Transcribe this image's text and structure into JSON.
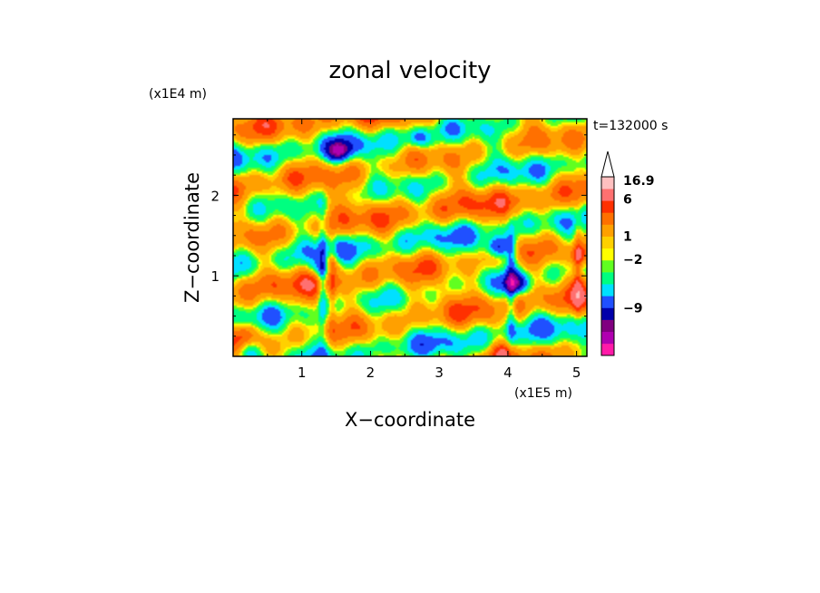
{
  "chart_data": {
    "type": "heatmap",
    "title": "zonal velocity",
    "xlabel": "X−coordinate",
    "ylabel": "Z−coordinate",
    "x_unit": "(x1E5 m)",
    "y_unit": "(x1E4 m)",
    "time_label": "t=132000 s",
    "xlim": [
      0,
      5.15
    ],
    "ylim": [
      0,
      2.95
    ],
    "x_ticks": [
      "1",
      "2",
      "3",
      "4",
      "5"
    ],
    "y_ticks": [
      "1",
      "2"
    ],
    "colorbar": {
      "labels": [
        "16.9",
        "6",
        "1",
        "−2",
        "−9"
      ],
      "colors": [
        "#ff1aa8",
        "#b000b0",
        "#800080",
        "#0000aa",
        "#2050ff",
        "#00e0ff",
        "#00ff80",
        "#60ff20",
        "#ffff00",
        "#ffd000",
        "#ffa000",
        "#ff7000",
        "#ff3000",
        "#ff7070",
        "#ffc0c0"
      ]
    },
    "features": [
      {
        "type": "min",
        "x": 1.55,
        "z": 2.55,
        "v": -9
      },
      {
        "type": "min",
        "x": 2.7,
        "z": 2.7,
        "v": -5
      },
      {
        "type": "min",
        "x": 3.85,
        "z": 1.35,
        "v": -8
      },
      {
        "type": "min",
        "x": 4.1,
        "z": 0.9,
        "v": -9
      },
      {
        "type": "min",
        "x": 1.3,
        "z": 1.1,
        "v": -7
      },
      {
        "type": "min",
        "x": 0.2,
        "z": 0.05,
        "v": -6
      },
      {
        "type": "max",
        "x": 1.4,
        "z": 1.15,
        "v": 6
      },
      {
        "type": "max",
        "x": 5.05,
        "z": 1.25,
        "v": 6
      },
      {
        "type": "max",
        "x": 0.2,
        "z": 0.3,
        "v": 4
      },
      {
        "type": "max",
        "x": 3.9,
        "z": 0.05,
        "v": 4
      }
    ]
  }
}
